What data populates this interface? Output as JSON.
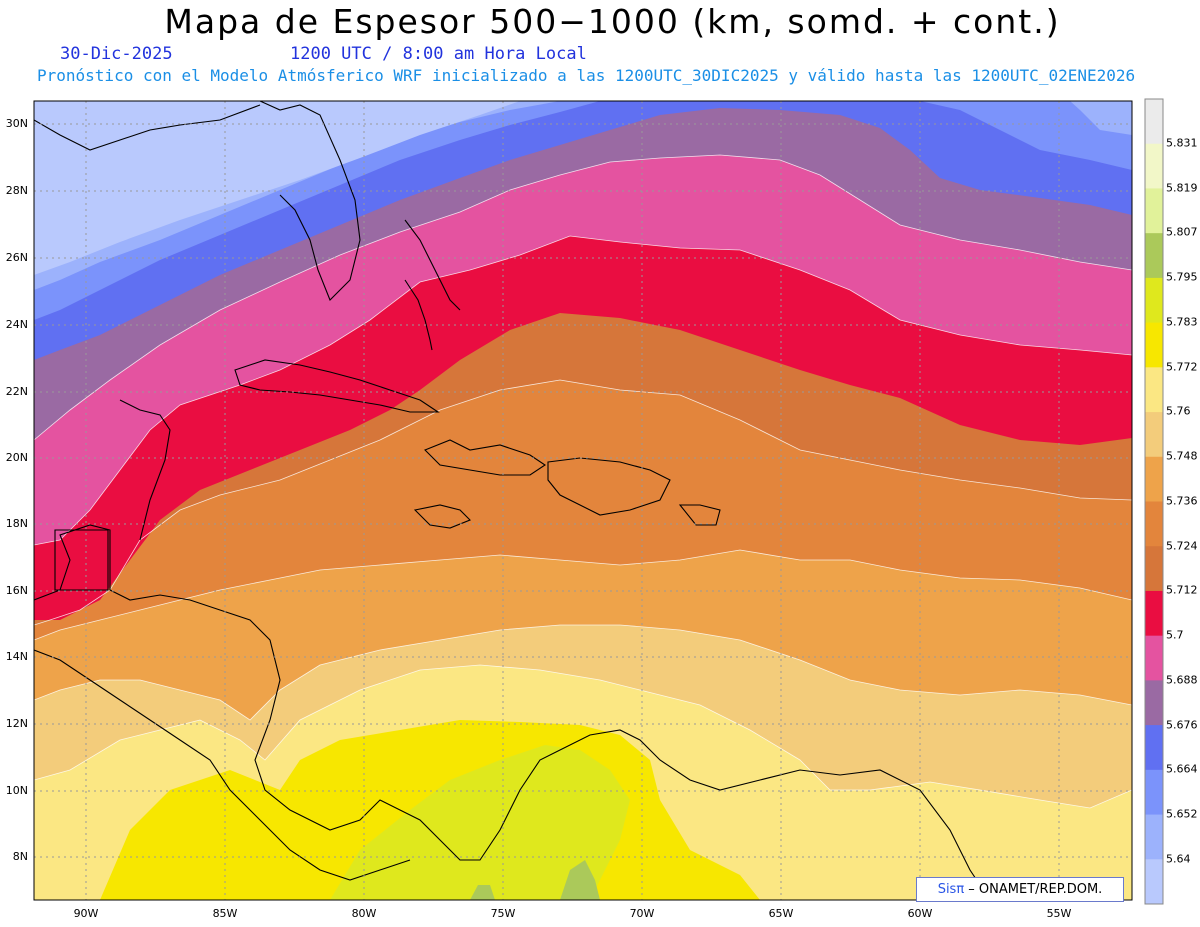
{
  "header": {
    "title": "Mapa de Espesor 500−1000 (km, somd. + cont.)",
    "date": "30-Dic-2025",
    "time": "1200 UTC / 8:00 am Hora Local",
    "forecast": "Pronóstico con el Modelo Atmósferico WRF inicializado a las 1200UTC_30DIC2025 y válido hasta las  1200UTC_02ENE2026"
  },
  "axes": {
    "lat_labels": [
      "30N",
      "28N",
      "26N",
      "24N",
      "22N",
      "20N",
      "18N",
      "16N",
      "14N",
      "12N",
      "10N",
      "8N"
    ],
    "lon_labels": [
      "90W",
      "85W",
      "80W",
      "75W",
      "70W",
      "65W",
      "60W",
      "55W"
    ]
  },
  "colorbar": {
    "labels": [
      "5.831",
      "5.819",
      "5.807",
      "5.795",
      "5.783",
      "5.772",
      "5.76",
      "5.748",
      "5.736",
      "5.724",
      "5.712",
      "5.7",
      "5.688",
      "5.676",
      "5.664",
      "5.652",
      "5.64"
    ],
    "colors": [
      "#ebebeb",
      "#f2f7c8",
      "#e1f29a",
      "#abc95a",
      "#dfe81d",
      "#f7e700",
      "#fbe783",
      "#f3cc7b",
      "#eea34a",
      "#e3853c",
      "#d6763a",
      "#ea0d41",
      "#e453a0",
      "#9a6aa3",
      "#6070f2",
      "#7b93fb",
      "#9cb2fc",
      "#b9c9fd"
    ]
  },
  "credit": {
    "sis": "Sisπ",
    "org": " – ONAMET/REP.DOM."
  }
}
